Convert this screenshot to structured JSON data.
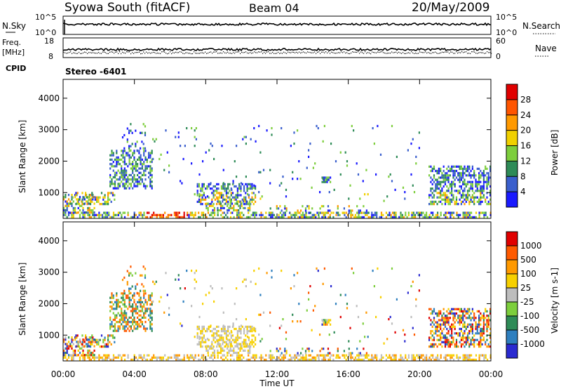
{
  "header": {
    "station": "Syowa South (fitACF)",
    "beam": "Beam 04",
    "date": "20/May/2009"
  },
  "panels": {
    "nsky": {
      "label": "N.Sky",
      "ticks": [
        "10^5",
        "10^0"
      ],
      "right_label": "N.Search",
      "right_ticks": [
        "10^5",
        "10^0"
      ]
    },
    "freq": {
      "label_line1": "Freq.",
      "label_line2": "[MHz]",
      "ticks": [
        "18",
        "8"
      ],
      "right_label": "Nave",
      "right_ticks": [
        "60",
        "0"
      ]
    },
    "cpid": {
      "label": "CPID",
      "value": "Stereo -6401"
    }
  },
  "chart_data": [
    {
      "type": "heatmap",
      "name": "power",
      "ylabel": "Slant Range [km]",
      "xlabel": "Time UT",
      "x_ticks": [
        "00:00",
        "04:00",
        "08:00",
        "12:00",
        "16:00",
        "20:00",
        "00:00"
      ],
      "y_ticks": [
        "1000",
        "2000",
        "3000",
        "4000"
      ],
      "ylim": [
        180,
        4600
      ],
      "colorbar": {
        "label": "Power [dB]",
        "ticks": [
          "4",
          "8",
          "12",
          "16",
          "20",
          "24",
          "28"
        ],
        "colors": [
          "#1a1aff",
          "#3a5fcd",
          "#2e8b57",
          "#7dce3c",
          "#f0d000",
          "#ff9900",
          "#ff5500",
          "#e00000"
        ]
      }
    },
    {
      "type": "heatmap",
      "name": "velocity",
      "ylabel": "Slant Range [km]",
      "xlabel": "Time UT",
      "x_ticks": [
        "00:00",
        "04:00",
        "08:00",
        "12:00",
        "16:00",
        "20:00",
        "00:00"
      ],
      "y_ticks": [
        "1000",
        "2000",
        "3000",
        "4000"
      ],
      "ylim": [
        180,
        4600
      ],
      "colorbar": {
        "label": "Velocity [m s-1]",
        "ticks": [
          "1000",
          "500",
          "100",
          "25",
          "-25",
          "-100",
          "-500",
          "-1000"
        ],
        "colors": [
          "#2a2ad0",
          "#2e7fbf",
          "#2e8b57",
          "#7dce3c",
          "#bdbdbd",
          "#f7d000",
          "#ff9900",
          "#ff5a00",
          "#e00000"
        ]
      }
    }
  ],
  "x_axis_title": "Time UT"
}
